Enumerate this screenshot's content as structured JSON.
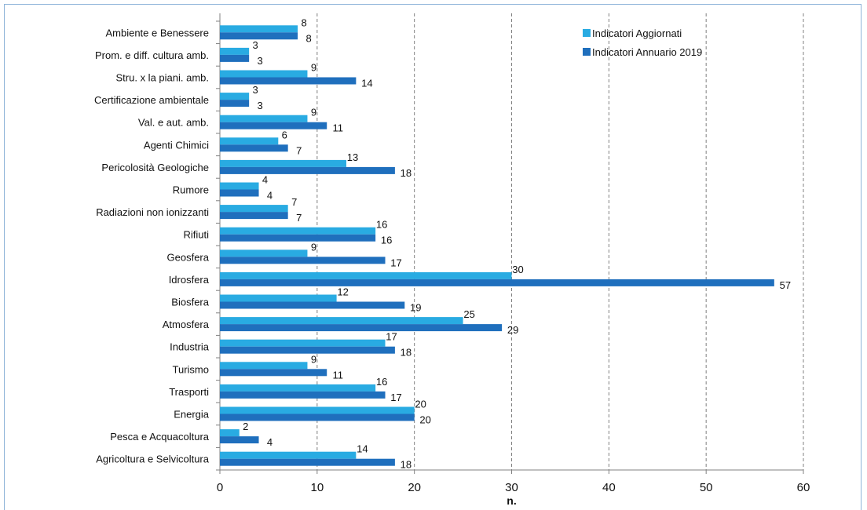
{
  "chart_data": {
    "type": "bar",
    "orientation": "horizontal",
    "categories": [
      "Ambiente e Benessere",
      "Prom. e diff. cultura amb.",
      "Stru. x la piani. amb.",
      "Certificazione ambientale",
      "Val. e aut.  amb.",
      "Agenti Chimici",
      "Pericolosità Geologiche",
      "Rumore",
      "Radiazioni non ionizzanti",
      "Rifiuti",
      "Geosfera",
      "Idrosfera",
      "Biosfera",
      "Atmosfera",
      "Industria",
      "Turismo",
      "Trasporti",
      "Energia",
      "Pesca e Acquacoltura",
      "Agricoltura e Selvicoltura"
    ],
    "series": [
      {
        "name": "Indicatori Aggiornati",
        "color": "#29abe2",
        "values": [
          8,
          3,
          9,
          3,
          9,
          6,
          13,
          4,
          7,
          16,
          9,
          30,
          12,
          25,
          17,
          9,
          16,
          20,
          2,
          14
        ]
      },
      {
        "name": "Indicatori Annuario 2019",
        "color": "#1f6fbd",
        "values": [
          8,
          3,
          14,
          3,
          11,
          7,
          18,
          4,
          7,
          16,
          17,
          57,
          19,
          29,
          18,
          11,
          17,
          20,
          4,
          18
        ]
      }
    ],
    "xlabel": "n.",
    "xlim": [
      0,
      60
    ],
    "xticks": [
      0,
      10,
      20,
      30,
      40,
      50,
      60
    ],
    "grid": "vertical dashed",
    "legend": "top-right"
  }
}
